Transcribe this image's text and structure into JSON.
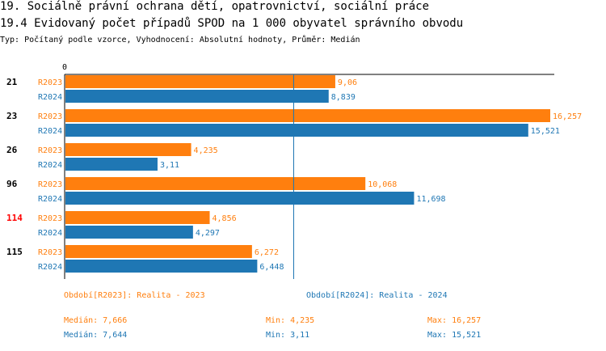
{
  "header": {
    "title1": "19. Sociálně právní ochrana dětí, opatrovnictví, sociální práce",
    "title2": "19.4 Evidovaný počet případů SPOD na 1 000 obyvatel správního obvodu",
    "subtitle": "Typ: Počítaný podle vzorce, Vyhodnocení: Absolutní hodnoty, Průměr: Medián"
  },
  "colors": {
    "series_2023": "#ff7f0e",
    "series_2024": "#1f77b4",
    "highlight_category": "#ff0000",
    "median_line": "#1f77b4"
  },
  "chart_data": {
    "type": "bar",
    "orientation": "horizontal",
    "categories": [
      "21",
      "23",
      "26",
      "96",
      "114",
      "115"
    ],
    "highlight_categories": [
      "114"
    ],
    "series": [
      {
        "name": "R2023",
        "values": [
          9.06,
          16.257,
          4.235,
          10.068,
          4.856,
          6.272
        ],
        "labels": [
          "9,06",
          "16,257",
          "4,235",
          "10,068",
          "4,856",
          "6,272"
        ]
      },
      {
        "name": "R2024",
        "values": [
          8.839,
          15.521,
          3.11,
          11.698,
          4.297,
          6.448
        ],
        "labels": [
          "8,839",
          "15,521",
          "3,11",
          "11,698",
          "4,297",
          "6,448"
        ]
      }
    ],
    "xlim": [
      0,
      16.257
    ],
    "x_tick_labels": [
      "0"
    ],
    "median_line": 7.644
  },
  "legend": {
    "r2023": "Období[R2023]: Realita - 2023",
    "r2024": "Období[R2024]: Realita - 2024"
  },
  "stats": {
    "r2023": {
      "median": "Medián: 7,666",
      "min": "Min: 4,235",
      "max": "Max: 16,257"
    },
    "r2024": {
      "median": "Medián: 7,644",
      "min": "Min: 3,11",
      "max": "Max: 15,521"
    }
  }
}
